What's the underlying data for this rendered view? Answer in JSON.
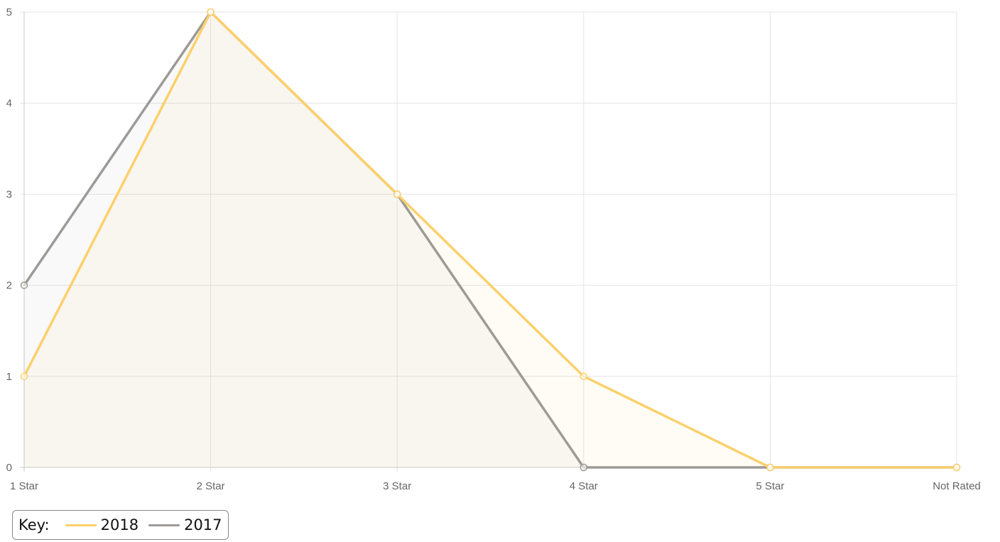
{
  "colors": {
    "series_2018": "#fcd06b",
    "series_2017": "#9e9a96",
    "grid": "#e4e4e4",
    "axis": "#c8c8c8"
  },
  "legend": {
    "key_label": "Key:",
    "placement": "bottom-left"
  },
  "chart_data": {
    "type": "line",
    "categories": [
      "1 Star",
      "2 Star",
      "3 Star",
      "4 Star",
      "5 Star",
      "Not Rated"
    ],
    "title": "",
    "xlabel": "",
    "ylabel": "",
    "ylim": [
      0,
      5
    ],
    "yticks": [
      "0",
      "1",
      "2",
      "3",
      "4",
      "5"
    ],
    "grid": true,
    "filled": true,
    "series": [
      {
        "name": "2018",
        "values": [
          1,
          5,
          3,
          1,
          0,
          0
        ]
      },
      {
        "name": "2017",
        "values": [
          2,
          5,
          3,
          0,
          0,
          0
        ]
      }
    ]
  }
}
